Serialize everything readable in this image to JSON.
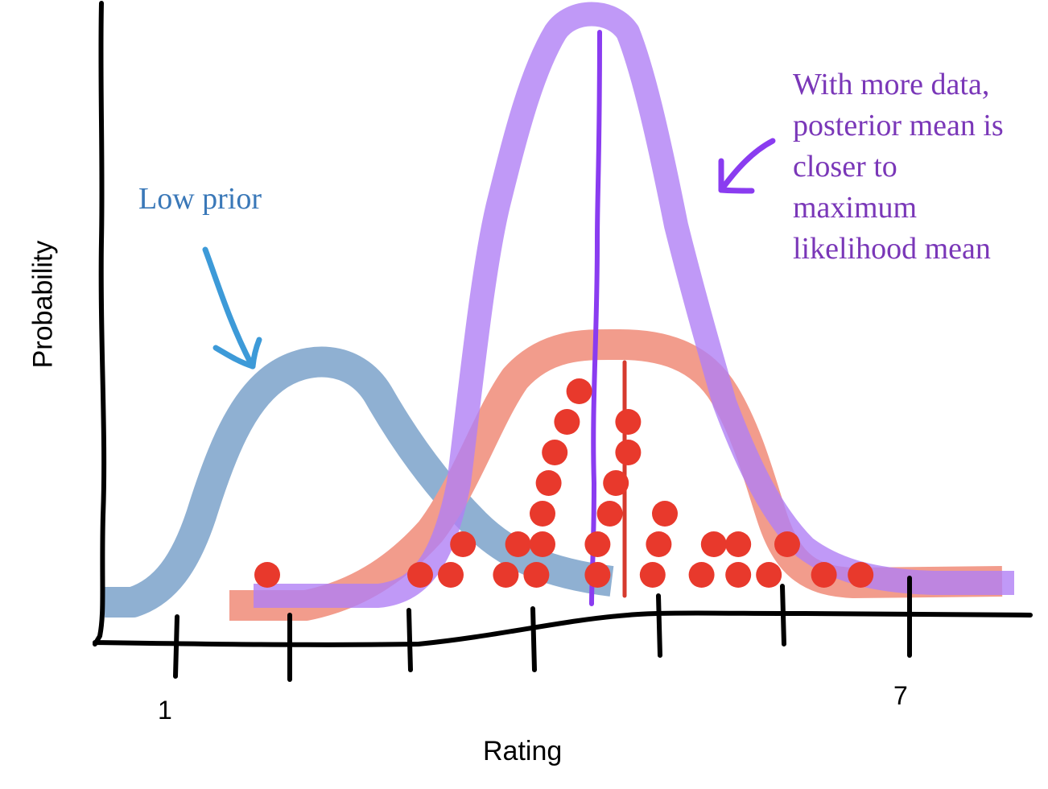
{
  "xlabel": "Rating",
  "ylabel": "Probability",
  "tick_labels": {
    "first": "1",
    "last": "7"
  },
  "annotations": {
    "low_prior": "Low prior",
    "more_data_lines": [
      "With more data,",
      "posterior mean is",
      "closer to",
      "maximum",
      "likelihood mean"
    ]
  },
  "colors": {
    "axes": "#000000",
    "prior_curve": "#8fb0d2",
    "prior_text": "#3a78b8",
    "prior_arrow": "#3d9ad8",
    "likelihood_curve": "#f29c8c",
    "likelihood_mean_line": "#d63a2e",
    "data_points": "#e8392c",
    "posterior_curve": "#b07ff5",
    "posterior_mean_line": "#8a3cf0",
    "note_text": "#7a37b8",
    "note_arrow": "#8a3cf0"
  },
  "icons": {
    "prior_arrow": "hand-drawn-arrow-down",
    "note_arrow": "hand-drawn-arrow-down-left"
  },
  "chart_data": {
    "type": "line",
    "xlabel": "Rating",
    "ylabel": "Probability",
    "x_tick_labels": [
      "1",
      "7"
    ],
    "xlim": [
      1,
      7
    ],
    "series": [
      {
        "name": "Low prior",
        "kind": "curve",
        "mean": 2.2,
        "sd": 0.6,
        "height": 0.3
      },
      {
        "kind": "curve",
        "mean": 4.6,
        "sd": 0.9,
        "height": 0.33
      },
      {
        "kind": "curve",
        "mean": 4.0,
        "sd": 0.45,
        "height": 0.72
      }
    ],
    "likelihood_mean": 4.6,
    "posterior_mean": 4.0,
    "data_points": [
      1.75,
      3.0,
      3.25,
      3.35,
      3.8,
      4.0,
      4.1,
      4.2,
      4.3,
      4.45,
      4.55,
      4.7,
      4.9,
      4.95,
      5.0,
      5.3,
      5.4,
      5.6,
      5.6,
      5.85,
      6.0,
      6.3,
      6.6,
      3.7,
      3.95,
      4.0,
      4.05,
      4.45,
      4.6,
      4.7
    ]
  }
}
